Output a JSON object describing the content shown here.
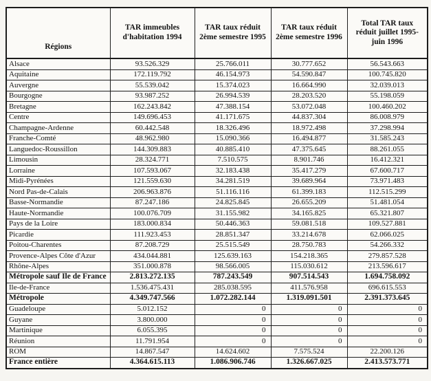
{
  "colors": {
    "paper": "#f6f5f1",
    "ink": "#141414",
    "border": "#1c1c1c"
  },
  "table": {
    "columns": [
      {
        "label": "Régions"
      },
      {
        "label": "TAR immeubles d'habitation 1994"
      },
      {
        "label": "TAR taux réduit 2ème semestre 1995"
      },
      {
        "label": "TAR taux réduit 2ème semestre 1996"
      },
      {
        "label": "Total TAR taux réduit juillet 1995- juin 1996"
      }
    ],
    "rows": [
      {
        "region": "Alsace",
        "values": [
          "93.526.329",
          "25.766.011",
          "30.777.652",
          "56.543.663"
        ],
        "bold": false
      },
      {
        "region": "Aquitaine",
        "values": [
          "172.119.792",
          "46.154.973",
          "54.590.847",
          "100.745.820"
        ],
        "bold": false
      },
      {
        "region": "Auvergne",
        "values": [
          "55.539.042",
          "15.374.023",
          "16.664.990",
          "32.039.013"
        ],
        "bold": false
      },
      {
        "region": "Bourgogne",
        "values": [
          "93.987.252",
          "26.994.539",
          "28.203.520",
          "55.198.059"
        ],
        "bold": false
      },
      {
        "region": "Bretagne",
        "values": [
          "162.243.842",
          "47.388.154",
          "53.072.048",
          "100.460.202"
        ],
        "bold": false
      },
      {
        "region": "Centre",
        "values": [
          "149.696.453",
          "41.171.675",
          "44.837.304",
          "86.008.979"
        ],
        "bold": false
      },
      {
        "region": "Champagne-Ardenne",
        "values": [
          "60.442.548",
          "18.326.496",
          "18.972.498",
          "37.298.994"
        ],
        "bold": false
      },
      {
        "region": "Franche-Comté",
        "values": [
          "48.962.980",
          "15.090.366",
          "16.494.877",
          "31.585.243"
        ],
        "bold": false
      },
      {
        "region": "Languedoc-Roussillon",
        "values": [
          "144.309.883",
          "40.885.410",
          "47.375.645",
          "88.261.055"
        ],
        "bold": false
      },
      {
        "region": "Limousin",
        "values": [
          "28.324.771",
          "7.510.575",
          "8.901.746",
          "16.412.321"
        ],
        "bold": false
      },
      {
        "region": "Lorraine",
        "values": [
          "107.593.067",
          "32.183.438",
          "35.417.279",
          "67.600.717"
        ],
        "bold": false
      },
      {
        "region": "Midi-Pyrénées",
        "values": [
          "121.559.630",
          "34.281.519",
          "39.689.964",
          "73.971.483"
        ],
        "bold": false
      },
      {
        "region": "Nord Pas-de-Calais",
        "values": [
          "206.963.876",
          "51.116.116",
          "61.399.183",
          "112.515.299"
        ],
        "bold": false
      },
      {
        "region": "Basse-Normandie",
        "values": [
          "87.247.186",
          "24.825.845",
          "26.655.209",
          "51.481.054"
        ],
        "bold": false
      },
      {
        "region": "Haute-Normandie",
        "values": [
          "100.076.709",
          "31.155.982",
          "34.165.825",
          "65.321.807"
        ],
        "bold": false
      },
      {
        "region": "Pays de la Loire",
        "values": [
          "183.000.834",
          "50.446.363",
          "59.081.518",
          "109.527.881"
        ],
        "bold": false
      },
      {
        "region": "Picardie",
        "values": [
          "111.923.453",
          "28.851.347",
          "33.214.678",
          "62.066.025"
        ],
        "bold": false
      },
      {
        "region": "Poitou-Charentes",
        "values": [
          "87.208.729",
          "25.515.549",
          "28.750.783",
          "54.266.332"
        ],
        "bold": false
      },
      {
        "region": "Provence-Alpes Côte d'Azur",
        "values": [
          "434.044.881",
          "125.639.163",
          "154.218.365",
          "279.857.528"
        ],
        "bold": false
      },
      {
        "region": "Rhône-Alpes",
        "values": [
          "351.000.878",
          "98.566.005",
          "115.030.612",
          "213.596.617"
        ],
        "bold": false
      },
      {
        "region": "Métropole sauf Ile de France",
        "values": [
          "2.813.272.135",
          "787.243.549",
          "907.514.543",
          "1.694.758.092"
        ],
        "bold": true
      },
      {
        "region": "Ile-de-France",
        "values": [
          "1.536.475.431",
          "285.038.595",
          "411.576.958",
          "696.615.553"
        ],
        "bold": false
      },
      {
        "region": "Métropole",
        "values": [
          "4.349.747.566",
          "1.072.282.144",
          "1.319.091.501",
          "2.391.373.645"
        ],
        "bold": true
      },
      {
        "region": "Guadeloupe",
        "values": [
          "5.012.152",
          "0",
          "0",
          "0"
        ],
        "bold": false
      },
      {
        "region": "Guyane",
        "values": [
          "3.800.000",
          "0",
          "0",
          "0"
        ],
        "bold": false
      },
      {
        "region": "Martinique",
        "values": [
          "6.055.395",
          "0",
          "0",
          "0"
        ],
        "bold": false
      },
      {
        "region": "Réunion",
        "values": [
          "11.791.954",
          "0",
          "0",
          "0"
        ],
        "bold": false
      },
      {
        "region": "ROM",
        "values": [
          "14.867.547",
          "14.624.602",
          "7.575.524",
          "22.200.126"
        ],
        "bold": false
      },
      {
        "region": "France entière",
        "values": [
          "4.364.615.113",
          "1.086.906.746",
          "1.326.667.025",
          "2.413.573.771"
        ],
        "bold": true
      }
    ]
  }
}
